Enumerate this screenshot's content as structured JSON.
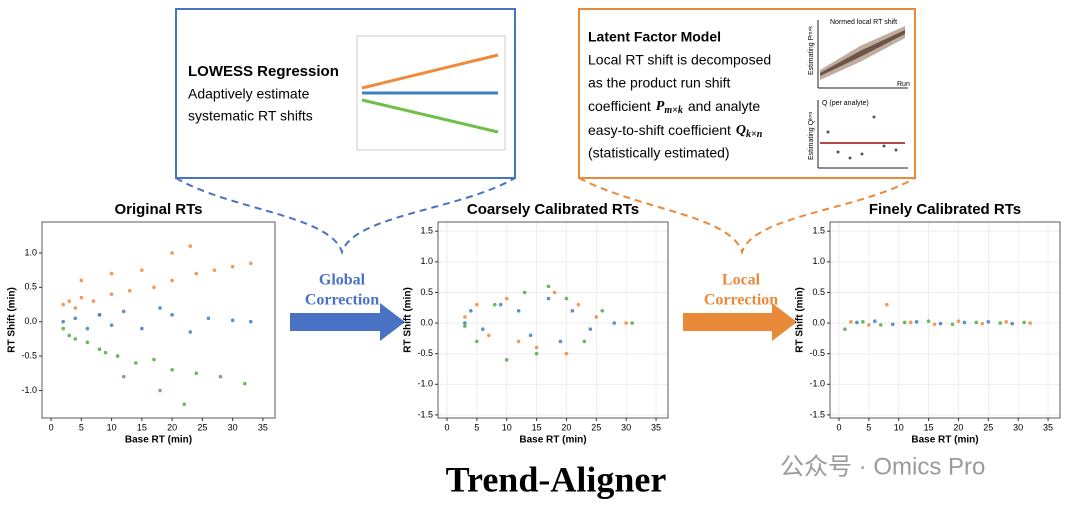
{
  "lowess_box": {
    "title": "LOWESS Regression",
    "lines": [
      "Adaptively estimate",
      "systematic RT shifts"
    ]
  },
  "latent_box": {
    "title": "Latent Factor Model",
    "line1": "Local RT shift is decomposed",
    "line2": "as the product run shift",
    "line3a": "coefficient",
    "p_symbol": "P",
    "p_sub": "m×k",
    "line3b": "and analyte",
    "line4a": "easy-to-shift coefficient",
    "q_symbol": "Q",
    "q_sub": "k×n",
    "line5": "(statistically estimated)",
    "inset_p_title": "Normed local RT shift",
    "inset_p_ylabel": "Estimating P",
    "inset_p_ysub": "m×k",
    "inset_p_xlabel": "Run",
    "inset_q_title": "Q (per analyte)",
    "inset_q_ylabel": "Estimating Q",
    "inset_q_ysub": "k×n"
  },
  "arrows": [
    {
      "label": [
        "Global",
        "Correction"
      ]
    },
    {
      "label": [
        "Local",
        "Correction"
      ]
    }
  ],
  "charts": [
    {
      "type": "scatter",
      "title": "Original RTs",
      "xlabel": "Base RT (min)",
      "ylabel": "RT Shift (min)",
      "xlim": [
        -1.5,
        37
      ],
      "ylim": [
        -1.4,
        1.45
      ],
      "xticks": [
        0,
        5,
        10,
        15,
        20,
        25,
        30,
        35
      ],
      "yticks": [
        {
          "value": -1.0,
          "label": "-1.0"
        },
        -0.5,
        {
          "value": 0.0,
          "label": "0.0"
        },
        0.5,
        {
          "value": 1.0,
          "label": "1.0"
        }
      ],
      "series": [
        {
          "color": "#f08a3c",
          "x": [
            2,
            3,
            4,
            5,
            7,
            10,
            13,
            17,
            20,
            24,
            27,
            30,
            33,
            5,
            10,
            15,
            20,
            23,
            8
          ],
          "y": [
            0.25,
            0.3,
            0.2,
            0.35,
            0.3,
            0.4,
            0.45,
            0.5,
            0.6,
            0.7,
            0.75,
            0.8,
            0.85,
            0.6,
            0.7,
            0.75,
            1.0,
            1.1,
            0.1
          ]
        },
        {
          "color": "#3d7fc1",
          "x": [
            2,
            4,
            6,
            8,
            10,
            12,
            15,
            18,
            20,
            23,
            26,
            30,
            33
          ],
          "y": [
            0,
            0.05,
            -0.1,
            0.1,
            -0.05,
            0.15,
            -0.1,
            0.2,
            0.1,
            -0.15,
            0.05,
            0.02,
            0
          ]
        },
        {
          "color": "#4fae3f",
          "x": [
            2,
            3,
            4,
            6,
            8,
            11,
            14,
            17,
            20,
            24,
            28,
            32,
            12,
            18,
            22,
            9
          ],
          "y": [
            -0.1,
            -0.2,
            -0.25,
            -0.3,
            -0.4,
            -0.5,
            -0.6,
            -0.55,
            -0.7,
            -0.75,
            -0.8,
            -0.9,
            -0.8,
            -1.0,
            -1.2,
            -0.45
          ]
        }
      ]
    },
    {
      "type": "scatter",
      "title": "Coarsely Calibrated RTs",
      "xlabel": "Base RT (min)",
      "ylabel": "RT Shift (min)",
      "xlim": [
        -1.5,
        37
      ],
      "ylim": [
        -1.55,
        1.65
      ],
      "xticks": [
        0,
        5,
        10,
        15,
        20,
        25,
        30,
        35
      ],
      "grid": true,
      "yticks": [
        -1.5,
        {
          "value": -1.0,
          "label": "-1.0"
        },
        -0.5,
        {
          "value": 0.0,
          "label": "0.0"
        },
        0.5,
        {
          "value": 1.0,
          "label": "1.0"
        },
        1.5
      ],
      "series": [
        {
          "color": "#f08a3c",
          "x": [
            3,
            5,
            7,
            10,
            12,
            15,
            18,
            20,
            22,
            25,
            30
          ],
          "y": [
            0.1,
            0.3,
            -0.2,
            0.4,
            -0.3,
            -0.4,
            0.5,
            -0.5,
            0.3,
            0.1,
            0
          ]
        },
        {
          "color": "#3d7fc1",
          "x": [
            3,
            4,
            6,
            9,
            12,
            14,
            17,
            19,
            21,
            24,
            28
          ],
          "y": [
            0,
            0.2,
            -0.1,
            0.3,
            0.2,
            -0.2,
            0.4,
            -0.3,
            0.2,
            -0.1,
            0
          ]
        },
        {
          "color": "#4fae3f",
          "x": [
            3,
            5,
            8,
            10,
            13,
            15,
            17,
            20,
            23,
            26,
            31
          ],
          "y": [
            -0.05,
            -0.3,
            0.3,
            -0.6,
            0.5,
            -0.5,
            0.6,
            0.4,
            -0.3,
            0.2,
            0
          ]
        }
      ]
    },
    {
      "type": "scatter",
      "title": "Finely Calibrated RTs",
      "xlabel": "Base RT (min)",
      "ylabel": "RT Shift (min)",
      "xlim": [
        -1.5,
        37
      ],
      "ylim": [
        -1.55,
        1.65
      ],
      "xticks": [
        0,
        5,
        10,
        15,
        20,
        25,
        30,
        35
      ],
      "grid": true,
      "yticks": [
        -1.5,
        {
          "value": -1.0,
          "label": "-1.0"
        },
        -0.5,
        {
          "value": 0.0,
          "label": "0.0"
        },
        0.5,
        {
          "value": 1.0,
          "label": "1.0"
        },
        1.5
      ],
      "series": [
        {
          "color": "#f08a3c",
          "x": [
            2,
            5,
            8,
            12,
            16,
            20,
            24,
            28,
            32
          ],
          "y": [
            0.02,
            -0.03,
            0.3,
            0.01,
            -0.02,
            0.03,
            -0.01,
            0.02,
            0
          ]
        },
        {
          "color": "#3d7fc1",
          "x": [
            3,
            6,
            9,
            13,
            17,
            21,
            25,
            29
          ],
          "y": [
            0.01,
            0.03,
            -0.02,
            0.02,
            -0.01,
            0.01,
            0.02,
            -0.01
          ]
        },
        {
          "color": "#4fae3f",
          "x": [
            1,
            4,
            7,
            11,
            15,
            19,
            23,
            27,
            31
          ],
          "y": [
            -0.1,
            0.02,
            -0.03,
            0.01,
            0.03,
            -0.02,
            0.01,
            0,
            0.01
          ]
        }
      ]
    }
  ],
  "footer": {
    "title": "Trend-Aligner",
    "watermark": "公众号 · Omics Pro"
  }
}
